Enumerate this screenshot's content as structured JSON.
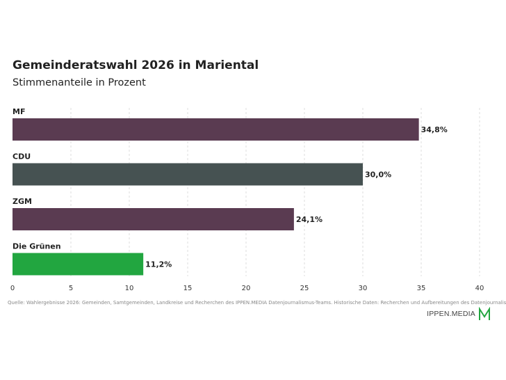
{
  "header": {
    "title": "Gemeinderatswahl 2026 in Mariental",
    "subtitle": "Stimmenanteile in Prozent"
  },
  "chart_data": {
    "type": "bar",
    "orientation": "horizontal",
    "categories": [
      "MF",
      "CDU",
      "ZGM",
      "Die Grünen"
    ],
    "values": [
      34.8,
      30.0,
      24.1,
      11.2
    ],
    "value_labels": [
      "34,8%",
      "30,0%",
      "24,1%",
      "11,2%"
    ],
    "colors": [
      "#5a3b51",
      "#465252",
      "#5a3b51",
      "#22a640"
    ],
    "title": "Gemeinderatswahl 2026 in Mariental",
    "subtitle": "Stimmenanteile in Prozent",
    "xlim": [
      0,
      40
    ],
    "xticks": [
      0,
      5,
      10,
      15,
      20,
      25,
      30,
      35,
      40
    ],
    "grid": true
  },
  "footer": {
    "source": "Quelle: Wahlergebnisse 2026: Gemeinden, Samtgemeinden, Landkreise und Recherchen des IPPEN.MEDIA Datenjournalismus-Teams. Historische Daten: Recherchen und Aufbereitungen des Datenjournalismus-Teams.",
    "logo_text": "IPPEN.MEDIA",
    "logo_color": "#22a640"
  }
}
